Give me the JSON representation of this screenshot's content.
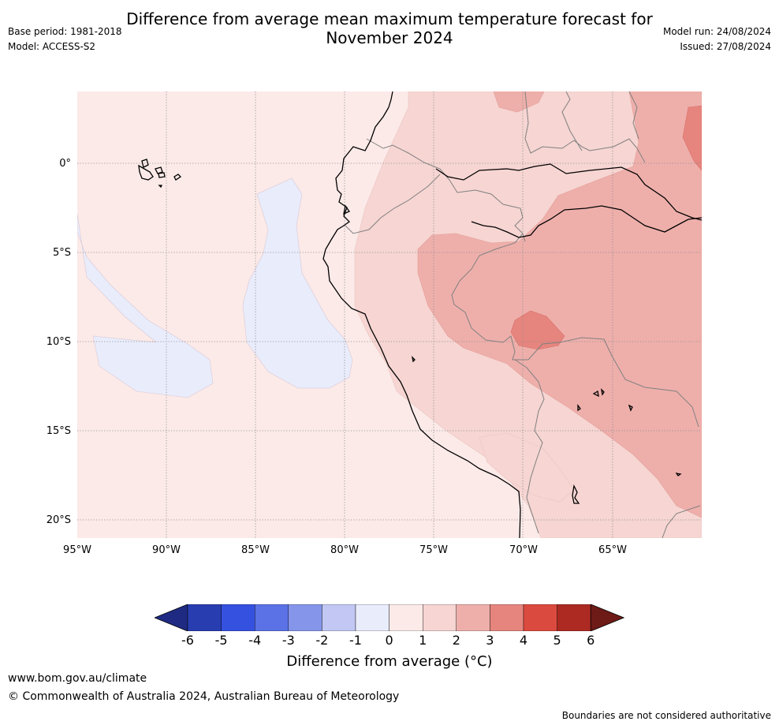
{
  "title_line1": "Difference from average mean maximum temperature forecast for",
  "title_line2": "November 2024",
  "base_period": "Base period: 1981-2018",
  "model": "Model: ACCESS-S2",
  "model_run": "Model run: 24/08/2024",
  "issued": "Issued: 27/08/2024",
  "lon_ticks": [
    "95°W",
    "90°W",
    "85°W",
    "80°W",
    "75°W",
    "70°W",
    "65°W"
  ],
  "lat_ticks": [
    "0°",
    "5°S",
    "10°S",
    "15°S",
    "20°S"
  ],
  "colorbar": {
    "labels": [
      "-6",
      "-5",
      "-4",
      "-3",
      "-2",
      "-1",
      "0",
      "1",
      "2",
      "3",
      "4",
      "5",
      "6"
    ],
    "colors": [
      "#1f2b82",
      "#283db0",
      "#3551e0",
      "#5b72e6",
      "#8495ea",
      "#c2c8f3",
      "#e9ecfb",
      "#fbeae8",
      "#f6d5d2",
      "#eeafab",
      "#e6857e",
      "#db4a3e",
      "#ac2a22",
      "#6e1a17"
    ],
    "title": "Difference from average (°C)"
  },
  "footer": {
    "url": "www.bom.gov.au/climate",
    "copyright": "© Commonwealth of Australia 2024, Australian Bureau of Meteorology",
    "disclaimer": "Boundaries are not considered authoritative"
  }
}
